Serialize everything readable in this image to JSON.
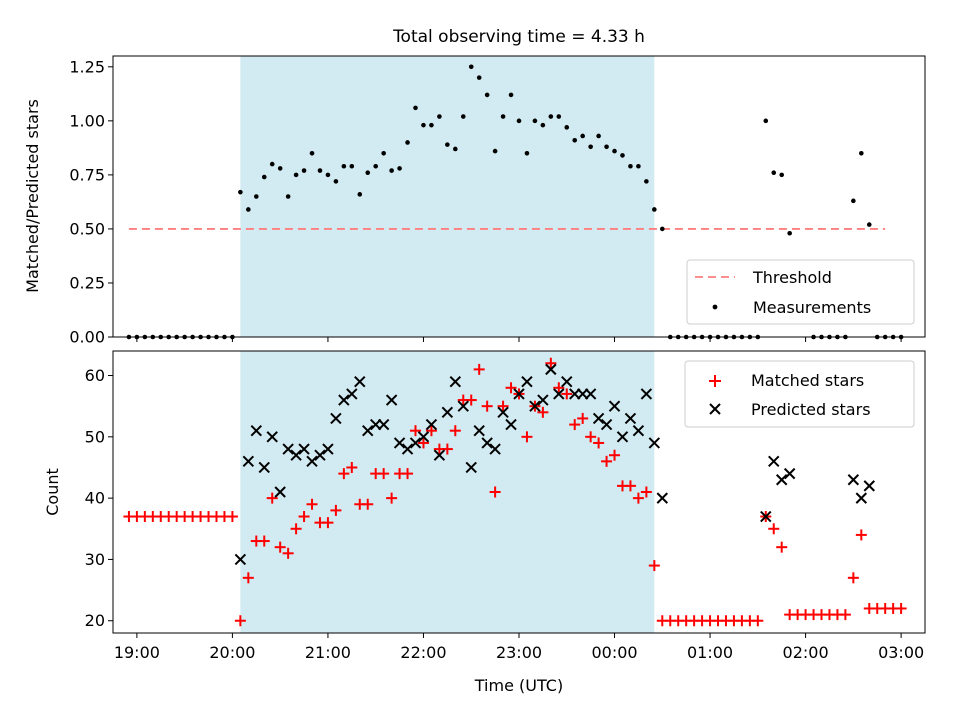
{
  "chart_data": [
    {
      "type": "scatter",
      "title": "Total observing time = 4.33 h",
      "xlabel": "",
      "ylabel": "Matched/Predicted stars",
      "xlim": [
        "18:45",
        "03:15"
      ],
      "ylim": [
        0,
        1.3
      ],
      "yticks": [
        "0.00",
        "0.25",
        "0.50",
        "0.75",
        "1.00",
        "1.25"
      ],
      "shaded_interval": [
        "20:05",
        "00:25"
      ],
      "shade_color": "#add8e6",
      "legend_position": "lower right",
      "threshold": {
        "name": "Threshold",
        "value": 0.5,
        "x_range": [
          "18:55",
          "02:50"
        ],
        "color": "#ff7f7f"
      },
      "series": [
        {
          "name": "Measurements",
          "color": "#000000",
          "points": [
            [
              "18:55",
              0
            ],
            [
              "19:00",
              0
            ],
            [
              "19:05",
              0
            ],
            [
              "19:10",
              0
            ],
            [
              "19:15",
              0
            ],
            [
              "19:20",
              0
            ],
            [
              "19:25",
              0
            ],
            [
              "19:30",
              0
            ],
            [
              "19:35",
              0
            ],
            [
              "19:40",
              0
            ],
            [
              "19:45",
              0
            ],
            [
              "19:50",
              0
            ],
            [
              "19:55",
              0
            ],
            [
              "20:00",
              0
            ],
            [
              "20:05",
              0.67
            ],
            [
              "20:10",
              0.59
            ],
            [
              "20:15",
              0.65
            ],
            [
              "20:20",
              0.74
            ],
            [
              "20:25",
              0.8
            ],
            [
              "20:30",
              0.78
            ],
            [
              "20:35",
              0.65
            ],
            [
              "20:40",
              0.75
            ],
            [
              "20:45",
              0.77
            ],
            [
              "20:50",
              0.85
            ],
            [
              "20:55",
              0.77
            ],
            [
              "21:00",
              0.75
            ],
            [
              "21:05",
              0.72
            ],
            [
              "21:10",
              0.79
            ],
            [
              "21:15",
              0.79
            ],
            [
              "21:20",
              0.66
            ],
            [
              "21:25",
              0.76
            ],
            [
              "21:30",
              0.79
            ],
            [
              "21:35",
              0.85
            ],
            [
              "21:40",
              0.77
            ],
            [
              "21:45",
              0.78
            ],
            [
              "21:50",
              0.9
            ],
            [
              "21:55",
              1.06
            ],
            [
              "22:00",
              0.98
            ],
            [
              "22:05",
              0.98
            ],
            [
              "22:10",
              1.02
            ],
            [
              "22:15",
              0.89
            ],
            [
              "22:20",
              0.87
            ],
            [
              "22:25",
              1.02
            ],
            [
              "22:30",
              1.25
            ],
            [
              "22:35",
              1.2
            ],
            [
              "22:40",
              1.12
            ],
            [
              "22:45",
              0.86
            ],
            [
              "22:50",
              1.02
            ],
            [
              "22:55",
              1.12
            ],
            [
              "23:00",
              1.0
            ],
            [
              "23:05",
              0.85
            ],
            [
              "23:10",
              1.0
            ],
            [
              "23:15",
              0.98
            ],
            [
              "23:20",
              1.02
            ],
            [
              "23:25",
              1.02
            ],
            [
              "23:30",
              0.97
            ],
            [
              "23:35",
              0.91
            ],
            [
              "23:40",
              0.93
            ],
            [
              "23:45",
              0.88
            ],
            [
              "23:50",
              0.93
            ],
            [
              "23:55",
              0.88
            ],
            [
              "00:00",
              0.86
            ],
            [
              "00:05",
              0.84
            ],
            [
              "00:10",
              0.79
            ],
            [
              "00:15",
              0.79
            ],
            [
              "00:20",
              0.72
            ],
            [
              "00:25",
              0.59
            ],
            [
              "00:30",
              0.5
            ],
            [
              "00:35",
              0
            ],
            [
              "00:40",
              0
            ],
            [
              "00:45",
              0
            ],
            [
              "00:50",
              0
            ],
            [
              "00:55",
              0
            ],
            [
              "01:00",
              0
            ],
            [
              "01:05",
              0
            ],
            [
              "01:10",
              0
            ],
            [
              "01:15",
              0
            ],
            [
              "01:20",
              0
            ],
            [
              "01:25",
              0
            ],
            [
              "01:30",
              0
            ],
            [
              "01:35",
              1.0
            ],
            [
              "01:40",
              0.76
            ],
            [
              "01:45",
              0.75
            ],
            [
              "01:50",
              0.48
            ],
            [
              "02:05",
              0
            ],
            [
              "02:10",
              0
            ],
            [
              "02:15",
              0
            ],
            [
              "02:20",
              0
            ],
            [
              "02:25",
              0
            ],
            [
              "02:30",
              0.63
            ],
            [
              "02:35",
              0.85
            ],
            [
              "02:40",
              0.52
            ],
            [
              "02:45",
              0
            ],
            [
              "02:50",
              0
            ],
            [
              "02:55",
              0
            ],
            [
              "03:00",
              0
            ]
          ]
        }
      ]
    },
    {
      "type": "scatter",
      "title": "",
      "xlabel": "Time (UTC)",
      "ylabel": "Count",
      "xlim": [
        "18:45",
        "03:15"
      ],
      "ylim": [
        18,
        64
      ],
      "yticks": [
        "20",
        "30",
        "40",
        "50",
        "60"
      ],
      "xticks": [
        "19:00",
        "20:00",
        "21:00",
        "22:00",
        "23:00",
        "00:00",
        "01:00",
        "02:00",
        "03:00"
      ],
      "shaded_interval": [
        "20:05",
        "00:25"
      ],
      "shade_color": "#add8e6",
      "legend_position": "upper right",
      "series": [
        {
          "name": "Matched stars",
          "marker": "plus",
          "color": "#ff0000",
          "points": [
            [
              "18:55",
              37
            ],
            [
              "19:00",
              37
            ],
            [
              "19:05",
              37
            ],
            [
              "19:10",
              37
            ],
            [
              "19:15",
              37
            ],
            [
              "19:20",
              37
            ],
            [
              "19:25",
              37
            ],
            [
              "19:30",
              37
            ],
            [
              "19:35",
              37
            ],
            [
              "19:40",
              37
            ],
            [
              "19:45",
              37
            ],
            [
              "19:50",
              37
            ],
            [
              "19:55",
              37
            ],
            [
              "20:00",
              37
            ],
            [
              "20:05",
              20
            ],
            [
              "20:10",
              27
            ],
            [
              "20:15",
              33
            ],
            [
              "20:20",
              33
            ],
            [
              "20:25",
              40
            ],
            [
              "20:30",
              32
            ],
            [
              "20:35",
              31
            ],
            [
              "20:40",
              35
            ],
            [
              "20:45",
              37
            ],
            [
              "20:50",
              39
            ],
            [
              "20:55",
              36
            ],
            [
              "21:00",
              36
            ],
            [
              "21:05",
              38
            ],
            [
              "21:10",
              44
            ],
            [
              "21:15",
              45
            ],
            [
              "21:20",
              39
            ],
            [
              "21:25",
              39
            ],
            [
              "21:30",
              44
            ],
            [
              "21:35",
              44
            ],
            [
              "21:40",
              40
            ],
            [
              "21:45",
              44
            ],
            [
              "21:50",
              44
            ],
            [
              "21:55",
              51
            ],
            [
              "22:00",
              49
            ],
            [
              "22:05",
              51
            ],
            [
              "22:10",
              48
            ],
            [
              "22:15",
              48
            ],
            [
              "22:20",
              51
            ],
            [
              "22:25",
              56
            ],
            [
              "22:30",
              56
            ],
            [
              "22:35",
              61
            ],
            [
              "22:40",
              55
            ],
            [
              "22:45",
              41
            ],
            [
              "22:50",
              55
            ],
            [
              "22:55",
              58
            ],
            [
              "23:00",
              57
            ],
            [
              "23:05",
              50
            ],
            [
              "23:10",
              55
            ],
            [
              "23:15",
              54
            ],
            [
              "23:20",
              62
            ],
            [
              "23:25",
              58
            ],
            [
              "23:30",
              57
            ],
            [
              "23:35",
              52
            ],
            [
              "23:40",
              53
            ],
            [
              "23:45",
              50
            ],
            [
              "23:50",
              49
            ],
            [
              "23:55",
              46
            ],
            [
              "00:00",
              47
            ],
            [
              "00:05",
              42
            ],
            [
              "00:10",
              42
            ],
            [
              "00:15",
              40
            ],
            [
              "00:20",
              41
            ],
            [
              "00:25",
              29
            ],
            [
              "00:30",
              20
            ],
            [
              "00:35",
              20
            ],
            [
              "00:40",
              20
            ],
            [
              "00:45",
              20
            ],
            [
              "00:50",
              20
            ],
            [
              "00:55",
              20
            ],
            [
              "01:00",
              20
            ],
            [
              "01:05",
              20
            ],
            [
              "01:10",
              20
            ],
            [
              "01:15",
              20
            ],
            [
              "01:20",
              20
            ],
            [
              "01:25",
              20
            ],
            [
              "01:30",
              20
            ],
            [
              "01:35",
              37
            ],
            [
              "01:40",
              35
            ],
            [
              "01:45",
              32
            ],
            [
              "01:50",
              21
            ],
            [
              "01:55",
              21
            ],
            [
              "02:00",
              21
            ],
            [
              "02:05",
              21
            ],
            [
              "02:10",
              21
            ],
            [
              "02:15",
              21
            ],
            [
              "02:20",
              21
            ],
            [
              "02:25",
              21
            ],
            [
              "02:30",
              27
            ],
            [
              "02:35",
              34
            ],
            [
              "02:40",
              22
            ],
            [
              "02:45",
              22
            ],
            [
              "02:50",
              22
            ],
            [
              "02:55",
              22
            ],
            [
              "03:00",
              22
            ]
          ]
        },
        {
          "name": "Predicted stars",
          "marker": "x",
          "color": "#000000",
          "points": [
            [
              "20:05",
              30
            ],
            [
              "20:10",
              46
            ],
            [
              "20:15",
              51
            ],
            [
              "20:20",
              45
            ],
            [
              "20:25",
              50
            ],
            [
              "20:30",
              41
            ],
            [
              "20:35",
              48
            ],
            [
              "20:40",
              47
            ],
            [
              "20:45",
              48
            ],
            [
              "20:50",
              46
            ],
            [
              "20:55",
              47
            ],
            [
              "21:00",
              48
            ],
            [
              "21:05",
              53
            ],
            [
              "21:10",
              56
            ],
            [
              "21:15",
              57
            ],
            [
              "21:20",
              59
            ],
            [
              "21:25",
              51
            ],
            [
              "21:30",
              52
            ],
            [
              "21:35",
              52
            ],
            [
              "21:40",
              56
            ],
            [
              "21:45",
              49
            ],
            [
              "21:50",
              48
            ],
            [
              "21:55",
              49
            ],
            [
              "22:00",
              50
            ],
            [
              "22:05",
              52
            ],
            [
              "22:10",
              47
            ],
            [
              "22:15",
              54
            ],
            [
              "22:20",
              59
            ],
            [
              "22:25",
              55
            ],
            [
              "22:30",
              45
            ],
            [
              "22:35",
              51
            ],
            [
              "22:40",
              49
            ],
            [
              "22:45",
              48
            ],
            [
              "22:50",
              54
            ],
            [
              "22:55",
              52
            ],
            [
              "23:00",
              57
            ],
            [
              "23:05",
              59
            ],
            [
              "23:10",
              55
            ],
            [
              "23:15",
              56
            ],
            [
              "23:20",
              61
            ],
            [
              "23:25",
              57
            ],
            [
              "23:30",
              59
            ],
            [
              "23:35",
              57
            ],
            [
              "23:40",
              57
            ],
            [
              "23:45",
              57
            ],
            [
              "23:50",
              53
            ],
            [
              "23:55",
              52
            ],
            [
              "00:00",
              55
            ],
            [
              "00:05",
              50
            ],
            [
              "00:10",
              53
            ],
            [
              "00:15",
              51
            ],
            [
              "00:20",
              57
            ],
            [
              "00:25",
              49
            ],
            [
              "00:30",
              40
            ],
            [
              "01:35",
              37
            ],
            [
              "01:40",
              46
            ],
            [
              "01:45",
              43
            ],
            [
              "01:50",
              44
            ],
            [
              "02:30",
              43
            ],
            [
              "02:35",
              40
            ],
            [
              "02:40",
              42
            ]
          ]
        }
      ]
    }
  ]
}
